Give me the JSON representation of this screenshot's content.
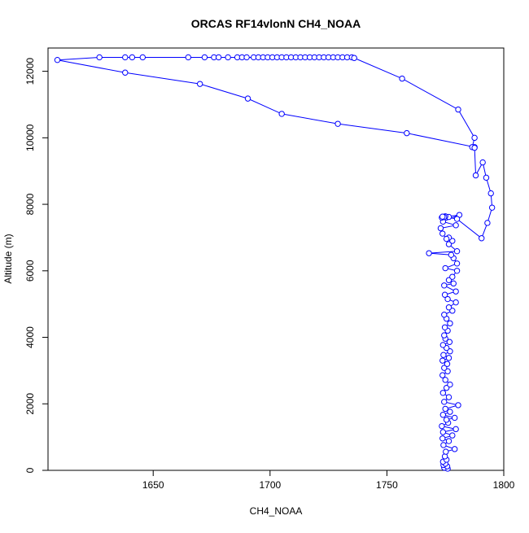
{
  "chart_data": {
    "type": "line",
    "title": "ORCAS RF14vlonN CH4_NOAA",
    "xlabel": "CH4_NOAA",
    "ylabel": "Altitude (m)",
    "xlim": [
      1605,
      1800
    ],
    "ylim": [
      0,
      12700
    ],
    "x_ticks": [
      1650,
      1700,
      1750,
      1800
    ],
    "y_ticks": [
      0,
      2000,
      4000,
      6000,
      8000,
      10000,
      12000
    ],
    "grid": false,
    "legend": "none",
    "series": [
      {
        "color": "#0000ff",
        "marker": "open-circle",
        "points": [
          [
            1776,
            50
          ],
          [
            1774.5,
            80
          ],
          [
            1775.8,
            120
          ],
          [
            1774.2,
            160
          ],
          [
            1775,
            200
          ],
          [
            1774,
            260
          ],
          [
            1775.5,
            320
          ],
          [
            1774.8,
            420
          ],
          [
            1775.2,
            560
          ],
          [
            1779,
            640
          ],
          [
            1774.2,
            760
          ],
          [
            1776.5,
            880
          ],
          [
            1773.8,
            960
          ],
          [
            1778,
            1050
          ],
          [
            1774,
            1150
          ],
          [
            1779.5,
            1240
          ],
          [
            1773.5,
            1330
          ],
          [
            1776.2,
            1430
          ],
          [
            1775.5,
            1520
          ],
          [
            1779,
            1580
          ],
          [
            1774,
            1670
          ],
          [
            1777,
            1760
          ],
          [
            1775,
            1850
          ],
          [
            1780.5,
            1960
          ],
          [
            1774.5,
            2060
          ],
          [
            1776.5,
            2200
          ],
          [
            1774,
            2330
          ],
          [
            1775.5,
            2480
          ],
          [
            1777,
            2580
          ],
          [
            1775,
            2720
          ],
          [
            1773.8,
            2860
          ],
          [
            1776,
            2980
          ],
          [
            1774.5,
            3080
          ],
          [
            1775.8,
            3200
          ],
          [
            1773.8,
            3300
          ],
          [
            1776.5,
            3380
          ],
          [
            1774.2,
            3470
          ],
          [
            1777,
            3580
          ],
          [
            1775.5,
            3680
          ],
          [
            1774,
            3770
          ],
          [
            1776.8,
            3860
          ],
          [
            1775,
            3960
          ],
          [
            1774.5,
            4060
          ],
          [
            1776,
            4200
          ],
          [
            1774.8,
            4300
          ],
          [
            1777,
            4420
          ],
          [
            1775.5,
            4560
          ],
          [
            1774.5,
            4680
          ],
          [
            1778,
            4800
          ],
          [
            1776.5,
            4900
          ],
          [
            1779.5,
            5050
          ],
          [
            1776,
            5150
          ],
          [
            1774.8,
            5280
          ],
          [
            1779.5,
            5380
          ],
          [
            1774.5,
            5560
          ],
          [
            1778.5,
            5620
          ],
          [
            1776.5,
            5720
          ],
          [
            1778,
            5820
          ],
          [
            1780,
            6000
          ],
          [
            1775,
            6080
          ],
          [
            1780,
            6220
          ],
          [
            1778.5,
            6380
          ],
          [
            1777.5,
            6480
          ],
          [
            1768,
            6530
          ],
          [
            1780,
            6590
          ],
          [
            1776.5,
            6800
          ],
          [
            1778,
            6900
          ],
          [
            1776.5,
            7000
          ],
          [
            1775.5,
            6960
          ],
          [
            1773.8,
            7120
          ],
          [
            1773,
            7280
          ],
          [
            1779.5,
            7370
          ],
          [
            1774,
            7480
          ],
          [
            1781,
            7680
          ],
          [
            1773.5,
            7600
          ],
          [
            1776.5,
            7620
          ],
          [
            1775,
            7640
          ],
          [
            1774.5,
            7620
          ],
          [
            1773.8,
            7630
          ],
          [
            1780,
            7560
          ],
          [
            1790.5,
            6980
          ],
          [
            1793,
            7440
          ],
          [
            1795,
            7900
          ],
          [
            1794.5,
            8330
          ],
          [
            1792.5,
            8800
          ],
          [
            1791,
            9260
          ],
          [
            1788,
            8870
          ],
          [
            1787.5,
            9720
          ],
          [
            1758.5,
            10140
          ],
          [
            1729,
            10420
          ],
          [
            1705,
            10720
          ],
          [
            1690.5,
            11180
          ],
          [
            1670,
            11620
          ],
          [
            1638,
            11960
          ],
          [
            1609,
            12340
          ],
          [
            1627,
            12420
          ],
          [
            1638,
            12420
          ],
          [
            1641,
            12420
          ],
          [
            1645.5,
            12420
          ],
          [
            1665,
            12420
          ],
          [
            1672,
            12420
          ],
          [
            1676,
            12420
          ],
          [
            1678,
            12420
          ],
          [
            1682,
            12420
          ],
          [
            1686,
            12420
          ],
          [
            1688,
            12420
          ],
          [
            1690,
            12420
          ],
          [
            1693,
            12420
          ],
          [
            1695,
            12420
          ],
          [
            1697,
            12420
          ],
          [
            1699,
            12420
          ],
          [
            1701,
            12420
          ],
          [
            1703,
            12420
          ],
          [
            1705,
            12420
          ],
          [
            1707,
            12420
          ],
          [
            1709,
            12420
          ],
          [
            1711,
            12420
          ],
          [
            1713,
            12420
          ],
          [
            1715,
            12420
          ],
          [
            1717,
            12420
          ],
          [
            1719,
            12420
          ],
          [
            1721,
            12420
          ],
          [
            1723,
            12420
          ],
          [
            1725,
            12420
          ],
          [
            1727,
            12420
          ],
          [
            1729,
            12420
          ],
          [
            1731,
            12420
          ],
          [
            1733,
            12420
          ],
          [
            1735,
            12420
          ],
          [
            1736,
            12400
          ],
          [
            1756.5,
            11780
          ],
          [
            1780.5,
            10850
          ],
          [
            1787.5,
            10000
          ],
          [
            1786.5,
            9720
          ],
          [
            1787.5,
            9700
          ]
        ]
      }
    ]
  }
}
